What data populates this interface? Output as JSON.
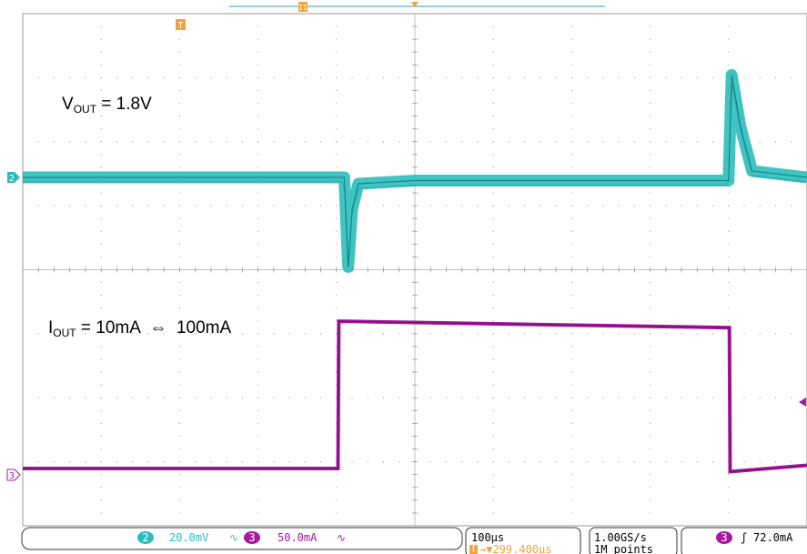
{
  "chart_data": {
    "type": "line",
    "title": "",
    "time_per_div_us": 100,
    "divisions_x": 10,
    "divisions_y": 8,
    "grid": true,
    "series": [
      {
        "channel": "2",
        "color": "#2bbdbd",
        "scale_per_div": "20.0mV",
        "points": [
          {
            "t_us": -500,
            "v_div": 0.0
          },
          {
            "t_us": -90,
            "v_div": 0.0
          },
          {
            "t_us": -85,
            "v_div": -1.4
          },
          {
            "t_us": -80,
            "v_div": -0.5
          },
          {
            "t_us": -72,
            "v_div": -0.1
          },
          {
            "t_us": 0,
            "v_div": -0.05
          },
          {
            "t_us": 400,
            "v_div": -0.05
          },
          {
            "t_us": 404,
            "v_div": 1.6
          },
          {
            "t_us": 415,
            "v_div": 0.8
          },
          {
            "t_us": 430,
            "v_div": 0.1
          },
          {
            "t_us": 500,
            "v_div": 0.0
          }
        ]
      },
      {
        "channel": "3",
        "color": "#a8189e",
        "scale_per_div": "50.0mA",
        "points": [
          {
            "t_us": -500,
            "i_div": 0.0
          },
          {
            "t_us": -98,
            "i_div": 0.0
          },
          {
            "t_us": -97,
            "i_div": 2.3
          },
          {
            "t_us": 401,
            "i_div": 2.2
          },
          {
            "t_us": 402,
            "i_div": -0.05
          },
          {
            "t_us": 500,
            "i_div": 0.05
          }
        ]
      }
    ],
    "annotations": [
      {
        "id": "vout",
        "main": "V",
        "sub": "OUT",
        "rest": " = 1.8V"
      },
      {
        "id": "iout",
        "main": "I",
        "sub": "OUT",
        "rest": " = 10mA  ⇔  100mA"
      }
    ]
  },
  "markers": {
    "trigger_top": "T",
    "cursor_top": "II",
    "ch2_marker": "2",
    "ch3_marker": "3"
  },
  "status": {
    "ch2_label": "2",
    "ch2_scale": "20.0mV",
    "ch3_label": "3",
    "ch3_scale": "50.0mA",
    "timebase": "100µs",
    "trigger_pos": "→▼299.400µs",
    "trigger_marker": "T",
    "sample_rate": "1.00GS/s",
    "record_length": "1M points",
    "trig_channel": "3",
    "trig_level": "72.0mA",
    "trig_slope": "ʃ"
  }
}
